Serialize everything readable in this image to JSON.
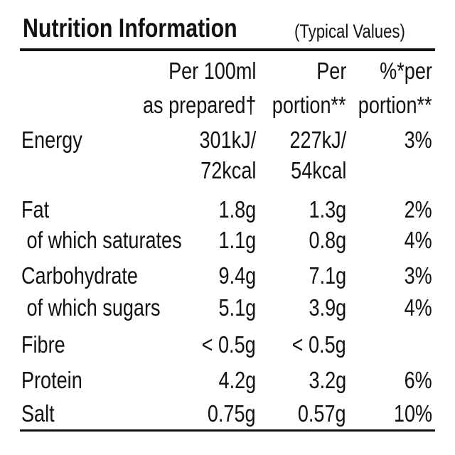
{
  "header": {
    "title": "Nutrition Information",
    "subtitle": "(Typical Values)"
  },
  "table": {
    "columns": [
      [
        "Per 100ml",
        "as prepared†"
      ],
      [
        "Per",
        "portion**"
      ],
      [
        "%*per",
        "portion**"
      ]
    ],
    "rows": [
      {
        "label": "Energy",
        "values": [
          [
            "301kJ/",
            "72kcal"
          ],
          [
            "227kJ/",
            "54kcal"
          ],
          [
            "3%"
          ]
        ]
      },
      {
        "label": "Fat",
        "values": [
          "1.8g",
          "1.3g",
          "2%"
        ]
      },
      {
        "label": " of which saturates",
        "values": [
          "1.1g",
          "0.8g",
          "4%"
        ]
      },
      {
        "label": "Carbohydrate",
        "values": [
          "9.4g",
          "7.1g",
          "3%"
        ]
      },
      {
        "label": " of which sugars",
        "values": [
          "5.1g",
          "3.9g",
          "4%"
        ]
      },
      {
        "label": "Fibre",
        "values": [
          "< 0.5g",
          "< 0.5g"
        ]
      },
      {
        "label": "Protein",
        "values": [
          "4.2g",
          "3.2g",
          "6%"
        ]
      },
      {
        "label": "Salt",
        "values": [
          "0.75g",
          "0.57g",
          "10%"
        ]
      }
    ]
  }
}
